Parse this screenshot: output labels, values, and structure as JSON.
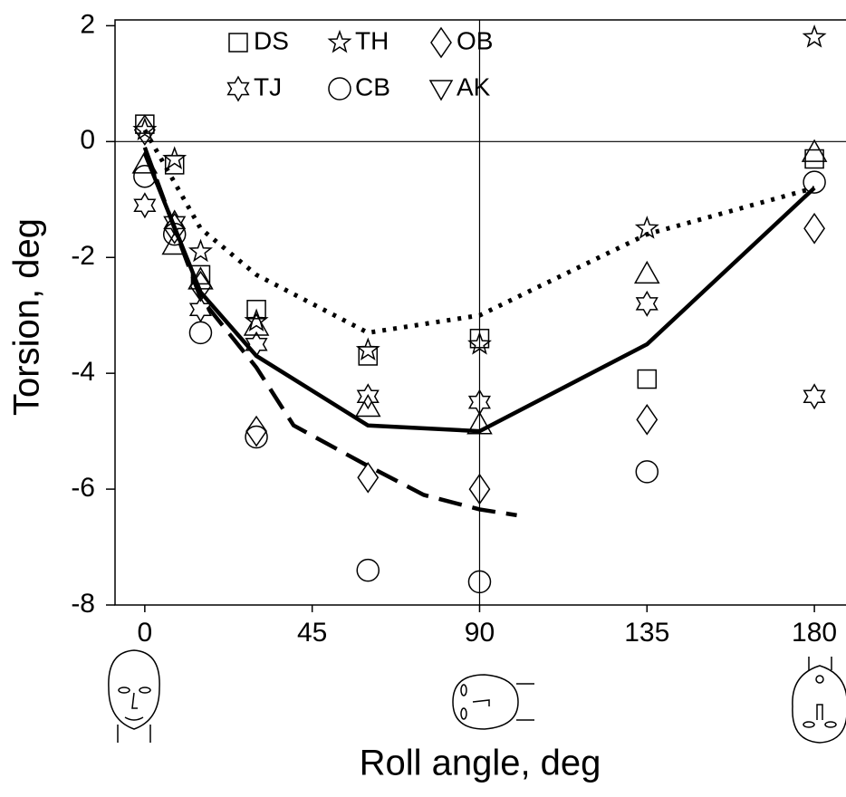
{
  "chart_data": {
    "type": "scatter",
    "x_label": "Roll angle, deg",
    "y_label": "Torsion, deg",
    "xlim": [
      -8,
      188.5
    ],
    "ylim": [
      -8,
      2.1
    ],
    "xticks": [
      0,
      45,
      90,
      135,
      180
    ],
    "yticks": [
      -8,
      -6,
      -4,
      -2,
      0,
      2
    ],
    "reference": {
      "x": 90,
      "y": 0
    },
    "series": [
      {
        "name": "DS",
        "marker": "square",
        "color": "#000000",
        "x": [
          0,
          8,
          15,
          30,
          60,
          90,
          135,
          180
        ],
        "values": [
          0.3,
          -0.4,
          -2.3,
          -2.9,
          -3.7,
          -3.4,
          -4.1,
          -0.3
        ]
      },
      {
        "name": "TH",
        "marker": "star5",
        "color": "#000000",
        "x": [
          0,
          8,
          15,
          30,
          60,
          90,
          135,
          180
        ],
        "values": [
          0.2,
          -0.3,
          -1.9,
          -3.1,
          -3.6,
          -3.5,
          -1.5,
          1.8
        ]
      },
      {
        "name": "OB",
        "marker": "diamond",
        "color": "#000000",
        "x": [
          0,
          8,
          15,
          30,
          60,
          90,
          135,
          180
        ],
        "values": [
          0.2,
          -1.5,
          -2.5,
          -5.0,
          -5.8,
          -6.0,
          -4.8,
          -1.5
        ]
      },
      {
        "name": "TJ",
        "marker": "star6",
        "color": "#000000",
        "x": [
          0,
          8,
          15,
          30,
          60,
          90,
          135,
          180
        ],
        "values": [
          -1.1,
          -1.4,
          -2.9,
          -3.5,
          -4.4,
          -4.5,
          -2.8,
          -4.4
        ]
      },
      {
        "name": "CB",
        "marker": "circle",
        "color": "#000000",
        "x": [
          0,
          8,
          15,
          30,
          60,
          90,
          135,
          180
        ],
        "values": [
          -0.6,
          -1.6,
          -3.3,
          -5.1,
          -7.4,
          -7.6,
          -5.7,
          -0.7
        ]
      },
      {
        "name": "AK",
        "marker": "triangle",
        "color": "#000000",
        "x": [
          0,
          8,
          15,
          30,
          60,
          90,
          135,
          180
        ],
        "values": [
          -0.4,
          -1.8,
          -2.4,
          -3.2,
          -4.6,
          -4.9,
          -2.3,
          -0.2
        ]
      }
    ],
    "curves": [
      {
        "style": "solid",
        "color": "#000000",
        "x": [
          0,
          15,
          30,
          60,
          90,
          135,
          180
        ],
        "values": [
          -0.2,
          -2.6,
          -3.7,
          -4.9,
          -5.0,
          -3.5,
          -0.8
        ]
      },
      {
        "style": "dotted",
        "color": "#000000",
        "x": [
          0,
          15,
          30,
          60,
          90,
          135,
          180
        ],
        "values": [
          0.2,
          -1.5,
          -2.3,
          -3.3,
          -3.0,
          -1.6,
          -0.8
        ]
      },
      {
        "style": "dashed",
        "color": "#000000",
        "x": [
          0,
          8,
          15,
          30,
          40,
          60,
          75,
          90,
          100
        ],
        "values": [
          -0.1,
          -1.5,
          -2.7,
          -3.9,
          -4.9,
          -5.6,
          -6.1,
          -6.35,
          -6.45
        ]
      }
    ]
  }
}
